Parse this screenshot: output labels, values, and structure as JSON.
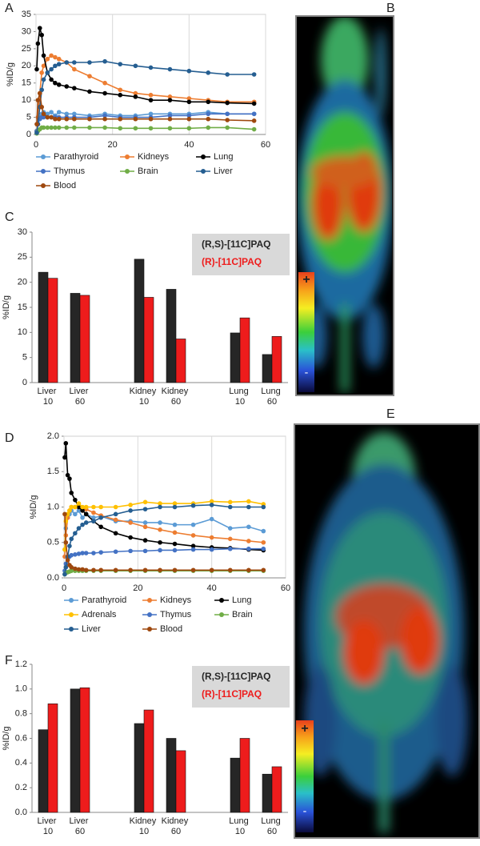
{
  "panel_labels": [
    "A",
    "B",
    "C",
    "D",
    "E",
    "F"
  ],
  "images": [
    {
      "scale_max": "+",
      "scale_min": "-"
    },
    {
      "scale_max": "+",
      "scale_min": "-"
    }
  ],
  "chart_data": [
    {
      "type": "line",
      "y_label": "%ID/g",
      "grid": true,
      "x": [
        0.2,
        0.5,
        1,
        1.5,
        2,
        3,
        4,
        5,
        6,
        8,
        10,
        14,
        18,
        22,
        26,
        30,
        35,
        40,
        45,
        50,
        57
      ],
      "xlim": [
        0,
        60
      ],
      "xticks": [
        0,
        20,
        40,
        60
      ],
      "ylim": [
        0,
        35
      ],
      "yticks": [
        0,
        5,
        10,
        15,
        20,
        25,
        30,
        35
      ],
      "series": [
        {
          "name": "Parathyroid",
          "color": "#5b9bd5",
          "values": [
            1,
            3,
            5,
            6,
            6.5,
            6,
            6.5,
            5.5,
            6.5,
            6,
            6,
            5.5,
            6,
            5.5,
            5.5,
            6,
            6,
            6,
            6.5,
            6,
            6
          ]
        },
        {
          "name": "Kidneys",
          "color": "#ed7d31",
          "values": [
            1,
            5,
            12,
            18,
            20,
            22,
            23,
            22.5,
            22,
            21,
            19,
            17,
            15,
            13,
            12,
            11.5,
            11,
            10.5,
            10,
            9.5,
            9.5
          ]
        },
        {
          "name": "Lung",
          "color": "#000000",
          "values": [
            19,
            26.5,
            31,
            29,
            23,
            18,
            16,
            15,
            14.5,
            14,
            13.5,
            12.5,
            12,
            11.5,
            11,
            10,
            10,
            9.5,
            9.5,
            9.2,
            9
          ]
        },
        {
          "name": "Thymus",
          "color": "#4472c4",
          "values": [
            1,
            3,
            4.5,
            5,
            5,
            5,
            5,
            5,
            5,
            5,
            5,
            5,
            5.5,
            5,
            5,
            5,
            5.5,
            5.5,
            6,
            6,
            6
          ]
        },
        {
          "name": "Brain",
          "color": "#70ad47",
          "values": [
            0.3,
            1,
            1.5,
            2,
            2,
            2,
            2,
            2,
            2,
            2,
            2,
            2,
            2,
            1.8,
            1.8,
            1.8,
            1.8,
            1.8,
            2,
            2,
            1.5
          ]
        },
        {
          "name": "Liver",
          "color": "#255e91",
          "values": [
            0.5,
            3,
            8,
            13,
            16,
            18,
            19,
            20,
            20.5,
            21,
            21,
            21,
            21.3,
            20.5,
            20,
            19.5,
            19,
            18.5,
            18,
            17.5,
            17.5
          ]
        },
        {
          "name": "Blood",
          "color": "#9e480e",
          "values": [
            3,
            10,
            12,
            8,
            6,
            5,
            5,
            4.5,
            4.5,
            4.5,
            4.5,
            4.5,
            4.5,
            4.5,
            4.5,
            4.5,
            4.5,
            4.5,
            4.5,
            4.2,
            4
          ]
        }
      ]
    },
    {
      "type": "bar",
      "y_label": "%ID/g",
      "grid": false,
      "categories": [
        "Liver 10",
        "Liver 60",
        null,
        "Kidney 10",
        "Kidney 60",
        null,
        "Lung 10",
        "Lung 60"
      ],
      "ylim": [
        0,
        30
      ],
      "yticks": [
        0,
        5,
        10,
        15,
        20,
        25,
        30
      ],
      "series": [
        {
          "name": "(R,S)-[11C]PAQ",
          "color": "#262626",
          "values": [
            22,
            17.8,
            null,
            24.6,
            18.6,
            null,
            9.9,
            5.6
          ]
        },
        {
          "name": "(R)-[11C]PAQ",
          "color": "#ee1c1c",
          "values": [
            20.8,
            17.4,
            null,
            17,
            8.7,
            null,
            12.9,
            9.2
          ]
        }
      ]
    },
    {
      "type": "line",
      "y_label": "%ID/g",
      "grid": true,
      "x": [
        0.2,
        0.5,
        1,
        1.5,
        2,
        3,
        4,
        5,
        6,
        8,
        10,
        14,
        18,
        22,
        26,
        30,
        35,
        40,
        45,
        50,
        54
      ],
      "xlim": [
        0,
        60
      ],
      "xticks": [
        0,
        20,
        40,
        60
      ],
      "ylim": [
        0,
        2
      ],
      "yticks": [
        {
          "value": 0,
          "label": "0.0"
        },
        {
          "value": 0.5,
          "label": "0.5"
        },
        {
          "value": 1,
          "label": "1.0"
        },
        {
          "value": 1.5,
          "label": "1.5"
        },
        {
          "value": 2,
          "label": "2.0"
        }
      ],
      "series": [
        {
          "name": "Parathyroid",
          "color": "#5b9bd5",
          "values": [
            0.4,
            0.7,
            0.85,
            0.9,
            0.95,
            0.9,
            0.95,
            0.85,
            0.9,
            0.85,
            0.87,
            0.8,
            0.8,
            0.78,
            0.78,
            0.75,
            0.75,
            0.83,
            0.7,
            0.72,
            0.66
          ]
        },
        {
          "name": "Kidneys",
          "color": "#ed7d31",
          "values": [
            0.3,
            0.6,
            0.85,
            0.95,
            1,
            1,
            1,
            0.98,
            0.97,
            0.92,
            0.88,
            0.82,
            0.78,
            0.72,
            0.68,
            0.64,
            0.6,
            0.57,
            0.55,
            0.52,
            0.5
          ]
        },
        {
          "name": "Lung",
          "color": "#000000",
          "values": [
            1.7,
            1.9,
            1.45,
            1.4,
            1.2,
            1.1,
            1,
            0.95,
            0.9,
            0.8,
            0.72,
            0.63,
            0.57,
            0.53,
            0.5,
            0.48,
            0.45,
            0.43,
            0.42,
            0.4,
            0.39
          ]
        },
        {
          "name": "Adrenals",
          "color": "#ffc000",
          "values": [
            0.4,
            0.8,
            0.9,
            0.95,
            1,
            1,
            1.05,
            1,
            1,
            1,
            1,
            1,
            1.03,
            1.07,
            1.05,
            1.05,
            1.05,
            1.08,
            1.07,
            1.08,
            1.04
          ]
        },
        {
          "name": "Thymus",
          "color": "#4472c4",
          "values": [
            0.1,
            0.2,
            0.28,
            0.3,
            0.32,
            0.33,
            0.34,
            0.35,
            0.35,
            0.35,
            0.36,
            0.37,
            0.38,
            0.38,
            0.39,
            0.39,
            0.4,
            0.4,
            0.41,
            0.41,
            0.41
          ]
        },
        {
          "name": "Brain",
          "color": "#70ad47",
          "values": [
            0.05,
            0.07,
            0.08,
            0.09,
            0.1,
            0.1,
            0.1,
            0.1,
            0.1,
            0.1,
            0.1,
            0.1,
            0.1,
            0.1,
            0.1,
            0.1,
            0.1,
            0.1,
            0.1,
            0.1,
            0.1
          ]
        },
        {
          "name": "Liver",
          "color": "#255e91",
          "values": [
            0.05,
            0.15,
            0.3,
            0.45,
            0.55,
            0.63,
            0.7,
            0.75,
            0.78,
            0.8,
            0.85,
            0.9,
            0.95,
            0.97,
            1,
            1,
            1.02,
            1.03,
            1,
            1,
            1
          ]
        },
        {
          "name": "Blood",
          "color": "#9e480e",
          "values": [
            0.9,
            0.5,
            0.25,
            0.18,
            0.15,
            0.13,
            0.12,
            0.12,
            0.11,
            0.11,
            0.11,
            0.11,
            0.11,
            0.11,
            0.11,
            0.11,
            0.11,
            0.11,
            0.11,
            0.11,
            0.11
          ]
        }
      ]
    },
    {
      "type": "bar",
      "y_label": "%ID/g",
      "grid": false,
      "categories": [
        "Liver 10",
        "Liver 60",
        null,
        "Kidney 10",
        "Kidney 60",
        null,
        "Lung 10",
        "Lung 60"
      ],
      "ylim": [
        0,
        1.2
      ],
      "yticks": [
        {
          "value": 0,
          "label": "0.0"
        },
        {
          "value": 0.2,
          "label": "0.2"
        },
        {
          "value": 0.4,
          "label": "0.4"
        },
        {
          "value": 0.6,
          "label": "0.6"
        },
        {
          "value": 0.8,
          "label": "0.8"
        },
        {
          "value": 1,
          "label": "1.0"
        },
        {
          "value": 1.2,
          "label": "1.2"
        }
      ],
      "series": [
        {
          "name": "(R,S)-[11C]PAQ",
          "color": "#262626",
          "values": [
            0.67,
            1,
            null,
            0.72,
            0.6,
            null,
            0.44,
            0.31
          ]
        },
        {
          "name": "(R)-[11C]PAQ",
          "color": "#ee1c1c",
          "values": [
            0.88,
            1.01,
            null,
            0.83,
            0.5,
            null,
            0.6,
            0.37
          ]
        }
      ]
    }
  ]
}
